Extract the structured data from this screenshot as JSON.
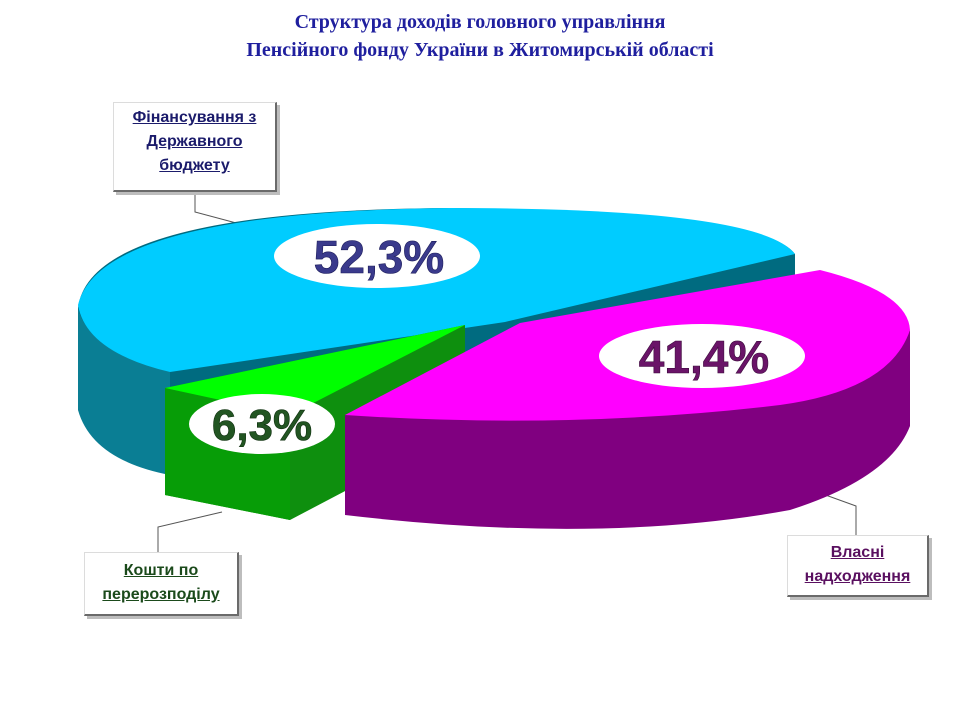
{
  "title": {
    "line1": "Структура доходів головного управління",
    "line2": "Пенсійного фонду України в Житомирській області"
  },
  "chart_data": {
    "type": "pie",
    "style": "3d-exploded",
    "slices": [
      {
        "label": "Фінансування з Державного бюджету",
        "value": 52.3,
        "value_label": "52,3%",
        "color": "#00ccff"
      },
      {
        "label": "Власні надходження",
        "value": 41.4,
        "value_label": "41,4%",
        "color": "#ff00ff"
      },
      {
        "label": "Кошти по перерозподілу",
        "value": 6.3,
        "value_label": "6,3%",
        "color": "#00ff00"
      }
    ]
  },
  "callouts": {
    "budget": {
      "line1": "Фінансування з",
      "line2": "Державного",
      "line3": "бюджету"
    },
    "redistribution": {
      "line1": "Кошти по",
      "line2": "перерозподілу"
    },
    "own": {
      "line1": "Власні",
      "line2": "надходження"
    }
  }
}
